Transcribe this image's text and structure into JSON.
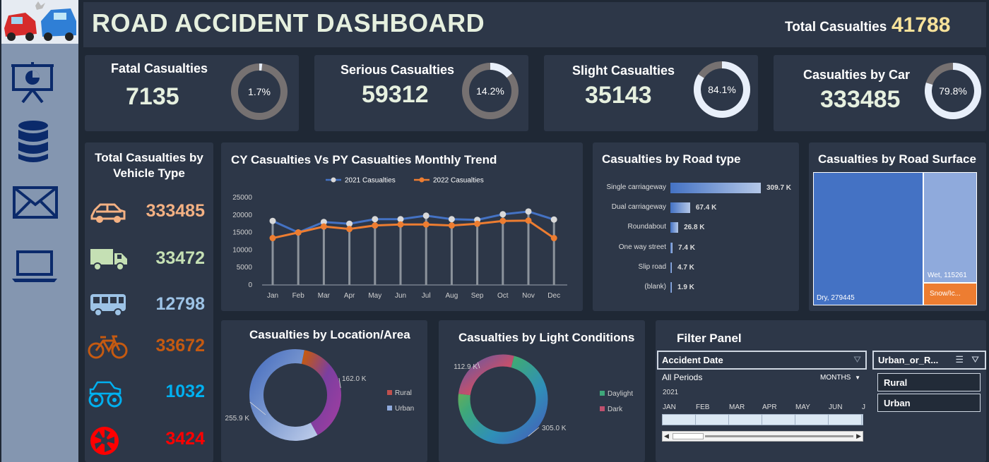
{
  "header": {
    "title": "ROAD ACCIDENT DASHBOARD",
    "total_label": "Total Casualties",
    "total_value": "41788"
  },
  "sidebar": {
    "items": [
      {
        "icon": "presentation-chart-icon"
      },
      {
        "icon": "database-icon"
      },
      {
        "icon": "mail-icon"
      },
      {
        "icon": "laptop-icon"
      }
    ]
  },
  "kpis": [
    {
      "title": "Fatal Casualties",
      "value": "7135",
      "pct_label": "1.7%",
      "pct": 1.7
    },
    {
      "title": "Serious Casualties",
      "value": "59312",
      "pct_label": "14.2%",
      "pct": 14.2
    },
    {
      "title": "Slight Casualties",
      "value": "35143",
      "pct_label": "84.1%",
      "pct": 84.1
    },
    {
      "title": "Casualties by Car",
      "value": "333485",
      "pct_label": "79.8%",
      "pct": 79.8
    }
  ],
  "vehicle": {
    "title_line1": "Total Casualties by",
    "title_line2": "Vehicle Type",
    "rows": [
      {
        "icon": "car-icon",
        "value": "333485",
        "color": "#f4b183"
      },
      {
        "icon": "truck-icon",
        "value": "33472",
        "color": "#c5e0b4"
      },
      {
        "icon": "bus-icon",
        "value": "12798",
        "color": "#9dc3e6"
      },
      {
        "icon": "bicycle-icon",
        "value": "33672",
        "color": "#c55a11"
      },
      {
        "icon": "monster-truck-icon",
        "value": "1032",
        "color": "#00b0f0"
      },
      {
        "icon": "aperture-icon",
        "value": "3424",
        "color": "#ff0000"
      }
    ]
  },
  "trend": {
    "title": "CY Casualties Vs PY Casualties  Monthly Trend"
  },
  "road_type": {
    "title": "Casualties by Road type"
  },
  "surface": {
    "title": "Casualties by Road  Surface"
  },
  "location": {
    "title": "Casualties by Location/Area"
  },
  "light": {
    "title": "Casualties by Light Conditions"
  },
  "filter": {
    "title": "Filter Panel",
    "date_label": "Accident Date",
    "all_periods": "All Periods",
    "months_label": "MONTHS",
    "year": "2021",
    "months": [
      "JAN",
      "FEB",
      "MAR",
      "APR",
      "MAY",
      "JUN",
      "J"
    ],
    "urban_label": "Urban_or_R...",
    "options": [
      "Rural",
      "Urban"
    ]
  },
  "chart_data": [
    {
      "type": "line",
      "title": "CY Casualties Vs PY Casualties  Monthly Trend",
      "categories": [
        "Jan",
        "Feb",
        "Mar",
        "Apr",
        "May",
        "Jun",
        "Jul",
        "Aug",
        "Sep",
        "Oct",
        "Nov",
        "Dec"
      ],
      "series": [
        {
          "name": "2021 Casualties",
          "color": "#4472c4",
          "values": [
            18300,
            15000,
            18000,
            17500,
            18800,
            18800,
            19800,
            18800,
            18600,
            20200,
            21000,
            18700
          ]
        },
        {
          "name": "2022 Casualties",
          "color": "#ed7d31",
          "values": [
            13400,
            15000,
            16700,
            16000,
            17000,
            17300,
            17300,
            17000,
            17500,
            18300,
            18400,
            13400
          ]
        }
      ],
      "yticks": [
        "0",
        "5000",
        "10000",
        "15000",
        "20000",
        "25000"
      ],
      "ylim": [
        0,
        25000
      ]
    },
    {
      "type": "bar",
      "title": "Casualties by Road type",
      "categories": [
        "Single carriageway",
        "Dual carriageway",
        "Roundabout",
        "One way street",
        "Slip road",
        "(blank)"
      ],
      "values": [
        309.7,
        67.4,
        26.8,
        7.4,
        4.7,
        1.9
      ],
      "labels": [
        "309.7 K",
        "67.4 K",
        "26.8 K",
        "7.4 K",
        "4.7 K",
        "1.9 K"
      ]
    },
    {
      "type": "treemap",
      "title": "Casualties by Road  Surface",
      "items": [
        {
          "label": "Dry, 279445",
          "value": 279445,
          "color": "#4472c4"
        },
        {
          "label": "Wet, 115261",
          "value": 115261,
          "color": "#8faadc"
        },
        {
          "label": "Snow/Ic...",
          "color": "#ed7d31"
        }
      ]
    },
    {
      "type": "pie",
      "title": "Casualties by Location/Area",
      "slices": [
        {
          "name": "Rural",
          "value": 162.0,
          "label": "162.0 K",
          "color": "#c0504d"
        },
        {
          "name": "Urban",
          "value": 255.9,
          "label": "255.9 K",
          "color": "#8faadc"
        }
      ]
    },
    {
      "type": "pie",
      "title": "Casualties by Light Conditions",
      "slices": [
        {
          "name": "Daylight",
          "value": 305.0,
          "label": "305.0 K",
          "color": "#3ea87a"
        },
        {
          "name": "Dark",
          "value": 112.9,
          "label": "112.9 K",
          "color": "#c0506e"
        }
      ]
    }
  ]
}
